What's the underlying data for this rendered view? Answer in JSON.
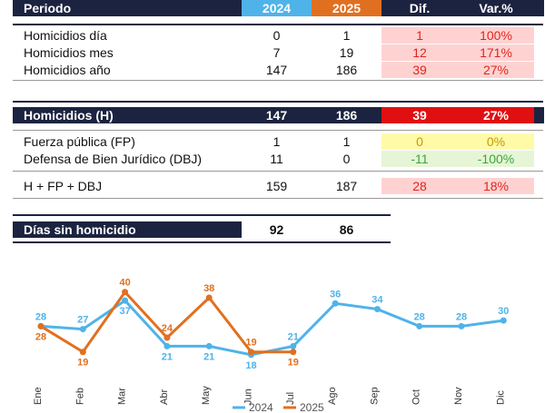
{
  "table": {
    "header": {
      "label": "Periodo",
      "y2024": "2024",
      "y2025": "2025",
      "dif": "Dif.",
      "var": "Var.%"
    },
    "group1": [
      {
        "label": "Homicidios día",
        "y2024": "0",
        "y2025": "1",
        "dif": "1",
        "var": "100%"
      },
      {
        "label": "Homicidios mes",
        "y2024": "7",
        "y2025": "19",
        "dif": "12",
        "var": "171%"
      },
      {
        "label": "Homicidios año",
        "y2024": "147",
        "y2025": "186",
        "dif": "39",
        "var": "27%"
      }
    ],
    "summary": {
      "label": "Homicidios (H)",
      "y2024": "147",
      "y2025": "186",
      "dif": "39",
      "var": "27%"
    },
    "group2": [
      {
        "label": "Fuerza pública (FP)",
        "y2024": "1",
        "y2025": "1",
        "dif": "0",
        "var": "0%"
      },
      {
        "label": "Defensa de Bien Jurídico (DBJ)",
        "y2024": "11",
        "y2025": "0",
        "dif": "-11",
        "var": "-100%"
      }
    ],
    "total": {
      "label": "H + FP + DBJ",
      "y2024": "159",
      "y2025": "187",
      "dif": "28",
      "var": "18%"
    },
    "dias": {
      "label": "Días sin homicidio",
      "y2024": "92",
      "y2025": "86"
    }
  },
  "colors": {
    "navy": "#1c2340",
    "blue2024": "#4fb3ea",
    "orange2025": "#e07020",
    "red": "#e01010"
  },
  "chart_data": {
    "type": "line",
    "categories": [
      "Ene",
      "Feb",
      "Mar",
      "Abr",
      "May",
      "Jun",
      "Jul",
      "Ago",
      "Sep",
      "Oct",
      "Nov",
      "Dic"
    ],
    "series": [
      {
        "name": "2024",
        "color": "#4fb3ea",
        "values": [
          28,
          27,
          37,
          21,
          21,
          18,
          21,
          36,
          34,
          28,
          28,
          30
        ]
      },
      {
        "name": "2025",
        "color": "#e07020",
        "values": [
          28,
          19,
          40,
          24,
          38,
          19,
          19,
          null,
          null,
          null,
          null,
          null
        ]
      }
    ],
    "ylim": [
      10,
      45
    ],
    "legend": "bottom"
  }
}
